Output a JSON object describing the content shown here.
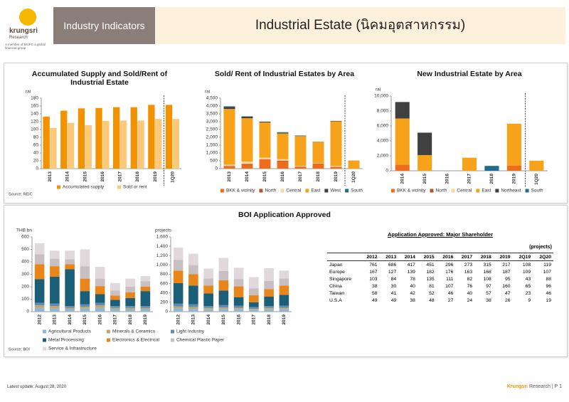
{
  "header": {
    "brand": "krungsri",
    "brand_sub": "Research",
    "tagline": "A member of MUFG a global financial group",
    "section": "Industry Indicators",
    "title": "Industrial Estate (นิคมอุตสาหกรรม)"
  },
  "chart_data": [
    {
      "type": "bar",
      "stacked": false,
      "title": "Accumulated Supply and Sold/Rent of Industrial Estate",
      "y_label": "rai",
      "categories": [
        "2013",
        "2014",
        "2015",
        "2016",
        "2017",
        "2018",
        "2019",
        "1Q20"
      ],
      "series": [
        {
          "name": "Accumulated supply",
          "color": "#f39200",
          "values": [
            133,
            148,
            154,
            155,
            157,
            157,
            163,
            163
          ]
        },
        {
          "name": "Sold or rent",
          "color": "#fcc97a",
          "values": [
            104,
            117,
            111,
            122,
            123,
            123,
            127,
            127
          ]
        }
      ],
      "ylim": [
        0,
        180
      ],
      "yticks": [
        0,
        20,
        40,
        60,
        80,
        100,
        120,
        140,
        160,
        180
      ],
      "grid": false
    },
    {
      "type": "bar",
      "stacked": true,
      "title": "Sold/ Rent of Industrial Estates by Area",
      "y_label": "rai",
      "categories": [
        "2013",
        "2014",
        "2015",
        "2016",
        "2017",
        "2018",
        "2019",
        "1Q20"
      ],
      "series": [
        {
          "name": "BKK & vicinity",
          "color": "#ed6d1c",
          "values": [
            120,
            250,
            600,
            450,
            100,
            300,
            100,
            0
          ]
        },
        {
          "name": "North",
          "color": "#b8571a",
          "values": [
            50,
            50,
            0,
            50,
            30,
            30,
            20,
            0
          ]
        },
        {
          "name": "Central",
          "color": "#fbd5a5",
          "values": [
            80,
            150,
            100,
            100,
            50,
            30,
            50,
            0
          ]
        },
        {
          "name": "East",
          "color": "#f7a21b",
          "values": [
            3560,
            2770,
            2250,
            1650,
            1900,
            1350,
            2850,
            520
          ]
        },
        {
          "name": "West",
          "color": "#404040",
          "values": [
            120,
            100,
            50,
            30,
            20,
            10,
            30,
            0
          ]
        },
        {
          "name": "South",
          "color": "#1f6b96",
          "values": [
            50,
            20,
            0,
            50,
            20,
            0,
            0,
            0
          ]
        }
      ],
      "ylim": [
        0,
        4500
      ],
      "yticks": [
        0,
        500,
        {
          "value": 1000,
          "label": "1,000"
        },
        {
          "value": 1500,
          "label": "1,500"
        },
        {
          "value": 2000,
          "label": "2,000"
        },
        {
          "value": 2500,
          "label": "2,500"
        },
        {
          "value": 3000,
          "label": "3,000"
        },
        {
          "value": 3500,
          "label": "3,500"
        },
        {
          "value": 4000,
          "label": "4,000"
        },
        {
          "value": 4500,
          "label": "4,500"
        }
      ],
      "grid": false
    },
    {
      "type": "bar",
      "stacked": true,
      "title": "New Industrial Estate by Area",
      "y_label": "rai",
      "categories": [
        "2014",
        "2015",
        "2016",
        "2017",
        "2018",
        "2019",
        "1Q20"
      ],
      "series": [
        {
          "name": "BKK & vicinity",
          "color": "#ed6d1c",
          "values": [
            800,
            0,
            0,
            0,
            0,
            700,
            0
          ]
        },
        {
          "name": "North",
          "color": "#b8571a",
          "values": [
            0,
            0,
            0,
            0,
            0,
            0,
            0
          ]
        },
        {
          "name": "Central",
          "color": "#fbd5a5",
          "values": [
            0,
            0,
            0,
            0,
            0,
            0,
            0
          ]
        },
        {
          "name": "East",
          "color": "#f7a21b",
          "values": [
            6200,
            2100,
            0,
            1750,
            0,
            5600,
            1350
          ]
        },
        {
          "name": "Northeast",
          "color": "#404040",
          "values": [
            2200,
            3000,
            0,
            0,
            0,
            0,
            0
          ]
        },
        {
          "name": "South",
          "color": "#1f6b96",
          "values": [
            0,
            0,
            0,
            0,
            650,
            0,
            0
          ]
        }
      ],
      "ylim": [
        0,
        10000
      ],
      "yticks": [
        0,
        {
          "value": 2000,
          "label": "2,000"
        },
        {
          "value": 4000,
          "label": "4,000"
        },
        {
          "value": 6000,
          "label": "6,000"
        },
        {
          "value": 8000,
          "label": "8,000"
        },
        {
          "value": 10000,
          "label": "10,000"
        }
      ],
      "grid": false
    },
    {
      "type": "bar",
      "stacked": true,
      "title": "BOI Application Approved",
      "categories": [
        "2012",
        "2013",
        "2014",
        "2015",
        "2016",
        "2017",
        "2018",
        "2019"
      ],
      "series": [
        {
          "name": "Agricultural Products",
          "color": "#8fb8d6"
        },
        {
          "name": "Minerals & Ceramics",
          "color": "#c9a46a"
        },
        {
          "name": "Light Industry",
          "color": "#5b8db5"
        },
        {
          "name": "Metal Processing",
          "color": "#1b5e78"
        },
        {
          "name": "Electronics & Electrical",
          "color": "#e8861a"
        },
        {
          "name": "Chemical Plastic Paper",
          "color": "#c8bfc2"
        },
        {
          "name": "Service & Infrastructure",
          "color": "#e0d8da"
        }
      ],
      "panels": [
        {
          "y_label": "THB bn",
          "ylim": [
            0,
            600
          ],
          "yticks": [
            0,
            100,
            200,
            300,
            400,
            500,
            600
          ],
          "values": [
            [
              30,
              25,
              20,
              25,
              30,
              20,
              20,
              20
            ],
            [
              20,
              20,
              10,
              15,
              20,
              10,
              10,
              10
            ],
            [
              20,
              20,
              15,
              20,
              20,
              15,
              15,
              15
            ],
            [
              190,
              215,
              295,
              105,
              70,
              50,
              65,
              120
            ],
            [
              120,
              85,
              40,
              100,
              65,
              35,
              45,
              35
            ],
            [
              80,
              60,
              40,
              100,
              60,
              40,
              45,
              45
            ],
            [
              90,
              65,
              70,
              135,
              95,
              60,
              65,
              40
            ]
          ]
        },
        {
          "y_label": "projects",
          "ylim": [
            0,
            1600
          ],
          "yticks": [
            0,
            200,
            400,
            600,
            800,
            {
              "value": 1000,
              "label": "1,000"
            },
            {
              "value": 1200,
              "label": "1,200"
            },
            {
              "value": 1400,
              "label": "1,400"
            },
            {
              "value": 1600,
              "label": "1,600"
            }
          ],
          "values": [
            [
              70,
              60,
              50,
              60,
              50,
              40,
              50,
              50
            ],
            [
              40,
              40,
              30,
              30,
              30,
              20,
              30,
              30
            ],
            [
              60,
              60,
              40,
              50,
              50,
              40,
              40,
              50
            ],
            [
              440,
              400,
              270,
              310,
              180,
              100,
              200,
              230
            ],
            [
              270,
              240,
              170,
              220,
              230,
              150,
              160,
              200
            ],
            [
              230,
              200,
              150,
              200,
              160,
              150,
              180,
              150
            ],
            [
              260,
              240,
              210,
              280,
              240,
              240,
              270,
              170
            ]
          ]
        }
      ],
      "grid": false
    }
  ],
  "sources": [
    "Source: REIC",
    "Source: BOI"
  ],
  "table": {
    "title": "Application Approved: Major Shareholder",
    "unit": "(projects)",
    "columns": [
      "2012",
      "2013",
      "2014",
      "2015",
      "2016",
      "2017",
      "2018",
      "2019",
      "2Q19",
      "2Q20"
    ],
    "rows": [
      [
        "Japan",
        761,
        686,
        417,
        451,
        296,
        273,
        315,
        217,
        108,
        119
      ],
      [
        "Europe",
        167,
        127,
        139,
        182,
        176,
        163,
        168,
        187,
        109,
        107
      ],
      [
        "Singapore",
        103,
        84,
        78,
        135,
        111,
        82,
        108,
        95,
        43,
        88
      ],
      [
        "China",
        38,
        30,
        40,
        81,
        107,
        76,
        97,
        160,
        65,
        96
      ],
      [
        "Taiwan",
        58,
        41,
        42,
        52,
        46,
        40,
        57,
        47,
        23,
        46
      ],
      [
        "U.S.A",
        49,
        49,
        38,
        48,
        27,
        24,
        38,
        26,
        9,
        19
      ]
    ]
  },
  "footer": {
    "updated": "Latest update: August 28, 2020",
    "brand": "Krungsri",
    "page": "Research | P 1"
  }
}
